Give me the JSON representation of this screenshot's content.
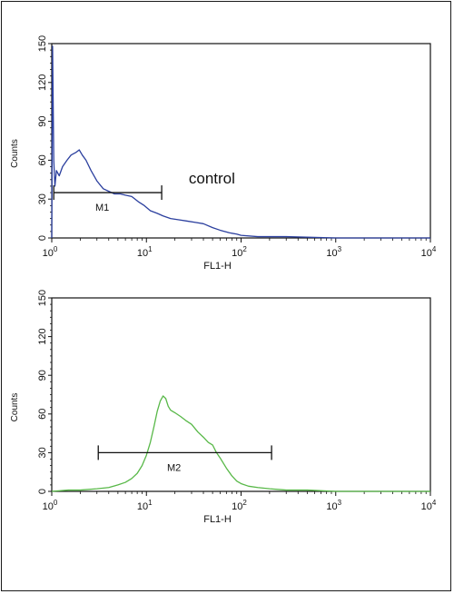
{
  "chart_data": [
    {
      "type": "line",
      "title": "",
      "xlabel": "FL1-H",
      "ylabel": "Counts",
      "x_scale": "log",
      "xlim": [
        1,
        10000
      ],
      "ylim": [
        0,
        150
      ],
      "x_tick_labels": [
        {
          "base": "10",
          "exp": "0"
        },
        {
          "base": "10",
          "exp": "1"
        },
        {
          "base": "10",
          "exp": "2"
        },
        {
          "base": "10",
          "exp": "3"
        },
        {
          "base": "10",
          "exp": "4"
        }
      ],
      "y_tick_labels": [
        "0",
        "30",
        "60",
        "90",
        "120",
        "150"
      ],
      "annotation": "control",
      "series": [
        {
          "color": "#2b3f9e",
          "x": [
            1,
            1.02,
            1.05,
            1.08,
            1.12,
            1.2,
            1.3,
            1.45,
            1.6,
            1.8,
            1.95,
            2.1,
            2.3,
            2.6,
            3.0,
            3.5,
            4.0,
            4.6,
            5.3,
            6.0,
            7.0,
            8.2,
            9.5,
            11,
            13,
            15,
            18,
            22,
            27,
            33,
            40,
            50,
            60,
            75,
            90,
            100,
            150,
            300,
            1000,
            10000
          ],
          "y": [
            0,
            148,
            60,
            40,
            52,
            48,
            55,
            60,
            64,
            66,
            68,
            64,
            60,
            52,
            44,
            38,
            36,
            34,
            34,
            33,
            32,
            28,
            25,
            21,
            19,
            17,
            15,
            14,
            13,
            12,
            11,
            8,
            6,
            4,
            3,
            2,
            1,
            1,
            0,
            0
          ]
        }
      ],
      "marker": {
        "label": "M1",
        "x_start": 1.05,
        "x_end": 14.5,
        "y": 35
      }
    },
    {
      "type": "line",
      "title": "",
      "xlabel": "FL1-H",
      "ylabel": "Counts",
      "x_scale": "log",
      "xlim": [
        1,
        10000
      ],
      "ylim": [
        0,
        150
      ],
      "x_tick_labels": [
        {
          "base": "10",
          "exp": "0"
        },
        {
          "base": "10",
          "exp": "1"
        },
        {
          "base": "10",
          "exp": "2"
        },
        {
          "base": "10",
          "exp": "3"
        },
        {
          "base": "10",
          "exp": "4"
        }
      ],
      "y_tick_labels": [
        "0",
        "30",
        "60",
        "90",
        "120",
        "150"
      ],
      "series": [
        {
          "color": "#58b848",
          "x": [
            1,
            1.5,
            2,
            3,
            4,
            5,
            6,
            7,
            8,
            9,
            10,
            11,
            12,
            13,
            14,
            15,
            16,
            17,
            18,
            20,
            23,
            26,
            30,
            35,
            40,
            45,
            50,
            55,
            60,
            70,
            80,
            90,
            100,
            120,
            150,
            200,
            300,
            500,
            1000,
            10000
          ],
          "y": [
            0,
            1,
            1,
            2,
            3,
            5,
            7,
            10,
            14,
            20,
            28,
            38,
            50,
            62,
            70,
            74,
            72,
            66,
            63,
            61,
            58,
            55,
            52,
            46,
            42,
            38,
            36,
            30,
            26,
            18,
            12,
            8,
            6,
            4,
            3,
            2,
            1,
            1,
            0,
            0
          ]
        }
      ],
      "marker": {
        "label": "M2",
        "x_start": 3.1,
        "x_end": 210,
        "y": 30
      }
    }
  ]
}
